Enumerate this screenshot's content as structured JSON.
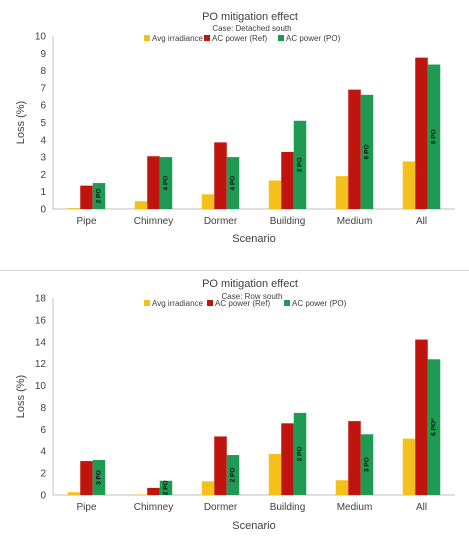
{
  "chart_data": [
    {
      "type": "bar",
      "title": "PO mitigation effect",
      "subtitle": "Case: Detached south",
      "xlabel": "Scenario",
      "ylabel": "Loss (%)",
      "ylim": [
        0,
        10
      ],
      "ytick_step": 1,
      "grid": false,
      "legend_position": "top-center",
      "categories": [
        "Pipe",
        "Chimney",
        "Dormer",
        "Building",
        "Medium",
        "All"
      ],
      "series": [
        {
          "name": "Avg irradiance",
          "color": "#f5c01b",
          "values": [
            0.05,
            0.45,
            0.85,
            1.65,
            1.9,
            2.75
          ]
        },
        {
          "name": "AC power (Ref)",
          "color": "#c0150e",
          "values": [
            1.35,
            3.05,
            3.85,
            3.3,
            6.9,
            8.75
          ]
        },
        {
          "name": "AC power (PO)",
          "color": "#1f9a52",
          "values": [
            1.5,
            3.0,
            3.0,
            5.1,
            6.6,
            8.35
          ]
        }
      ],
      "bar_labels": [
        "2 PO",
        "4 PO",
        "4 PO",
        "2 PO",
        "6 PO",
        "8 PO"
      ]
    },
    {
      "type": "bar",
      "title": "PO mitigation effect",
      "subtitle": "Case: Row south",
      "xlabel": "Scenario",
      "ylabel": "Loss (%)",
      "ylim": [
        0,
        18
      ],
      "ytick_step": 2,
      "grid": false,
      "legend_position": "top-right",
      "categories": [
        "Pipe",
        "Chimney",
        "Dormer",
        "Building",
        "Medium",
        "All"
      ],
      "series": [
        {
          "name": "Avg irradiance",
          "color": "#f5c01b",
          "values": [
            0.25,
            0.05,
            1.25,
            3.75,
            1.35,
            5.15
          ]
        },
        {
          "name": "AC power (Ref)",
          "color": "#c0150e",
          "values": [
            3.1,
            0.65,
            5.35,
            6.55,
            6.75,
            14.2
          ]
        },
        {
          "name": "AC power (PO)",
          "color": "#1f9a52",
          "values": [
            3.2,
            1.3,
            3.65,
            7.5,
            5.55,
            12.4
          ]
        }
      ],
      "bar_labels": [
        "3 PO",
        "2 PO",
        "2 PO",
        "2 PO",
        "3 PO",
        "6 PO*"
      ]
    }
  ]
}
